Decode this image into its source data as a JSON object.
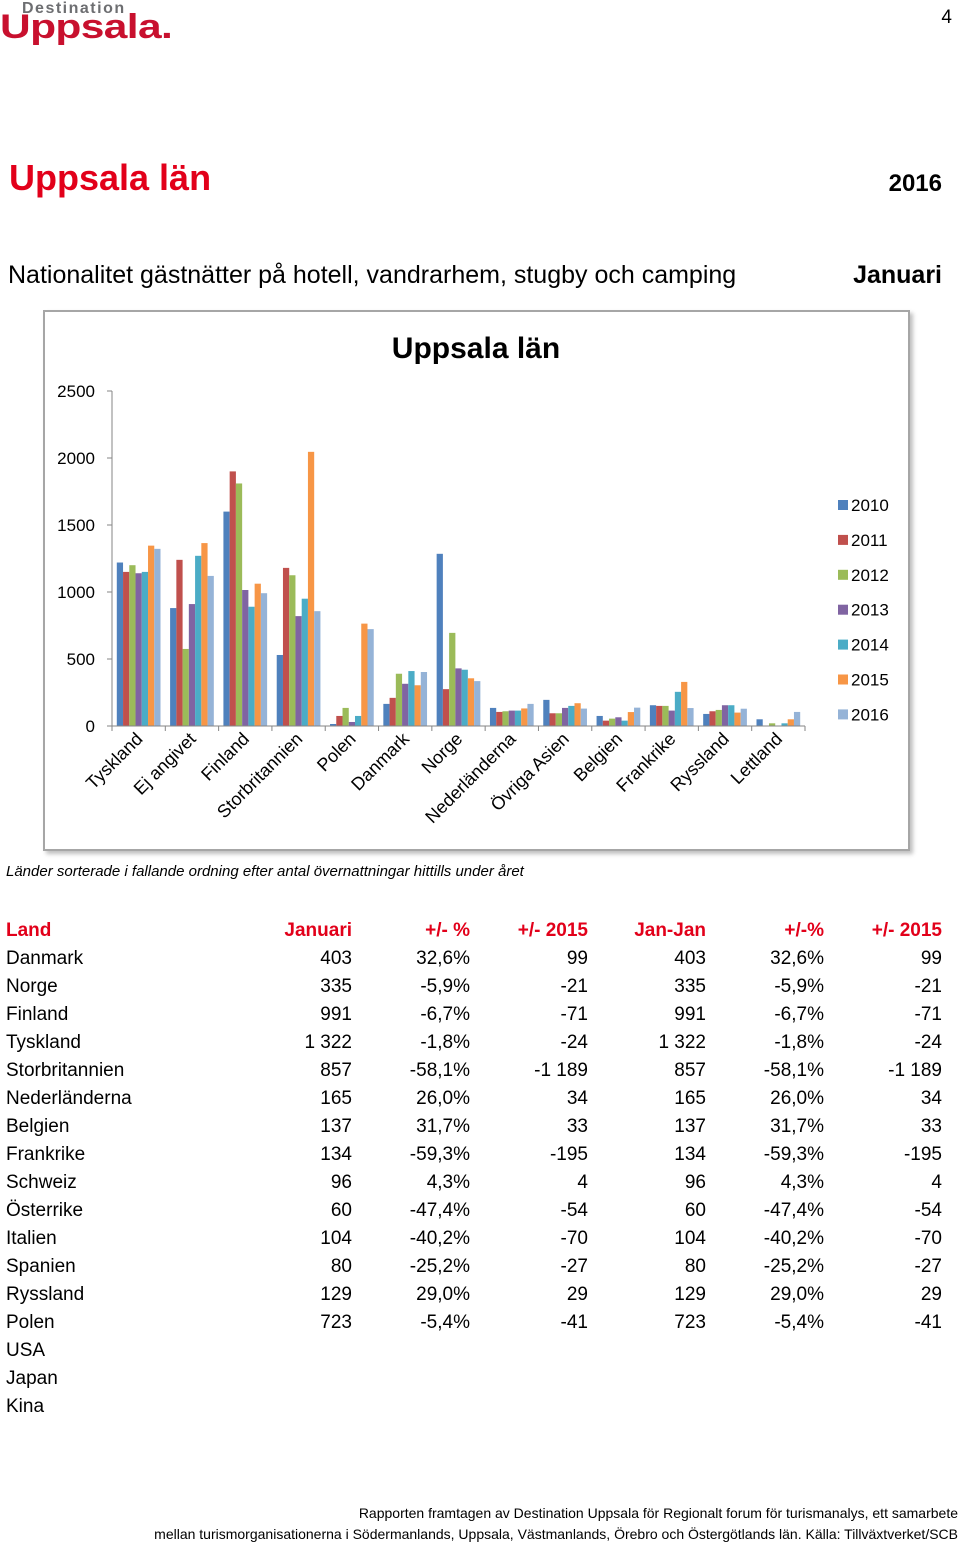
{
  "logo": {
    "tagline": "Destination",
    "name": "Uppsala."
  },
  "page_number": "4",
  "header": {
    "title": "Uppsala län",
    "year": "2016",
    "subtitle": "Nationalitet gästnätter på hotell, vandrarhem, stugby och camping",
    "month": "Januari"
  },
  "colors": {
    "accent_red": "#e2001a",
    "logo_red": "#c8102e",
    "frame_gray": "#a6a6a6"
  },
  "chart_data": {
    "type": "bar",
    "title": "Uppsala län",
    "categories": [
      "Tyskland",
      "Ej angivet",
      "Finland",
      "Storbritannien",
      "Polen",
      "Danmark",
      "Norge",
      "Nederländerna",
      "Övriga Asien",
      "Belgien",
      "Frankrike",
      "Ryssland",
      "Lettland"
    ],
    "series": [
      {
        "name": "2010",
        "color": "#4F81BD",
        "values": [
          1220,
          880,
          1600,
          530,
          15,
          165,
          1285,
          135,
          195,
          75,
          155,
          90,
          50
        ]
      },
      {
        "name": "2011",
        "color": "#C0504D",
        "values": [
          1150,
          1240,
          1900,
          1180,
          75,
          210,
          275,
          105,
          95,
          40,
          150,
          110,
          0
        ]
      },
      {
        "name": "2012",
        "color": "#9BBB59",
        "values": [
          1200,
          575,
          1810,
          1125,
          135,
          390,
          695,
          110,
          95,
          55,
          150,
          120,
          20
        ]
      },
      {
        "name": "2013",
        "color": "#8064A2",
        "values": [
          1140,
          910,
          1015,
          820,
          30,
          315,
          430,
          115,
          135,
          65,
          115,
          155,
          0
        ]
      },
      {
        "name": "2014",
        "color": "#4BACC6",
        "values": [
          1150,
          1270,
          890,
          950,
          75,
          410,
          420,
          115,
          150,
          40,
          255,
          155,
          20
        ]
      },
      {
        "name": "2015",
        "color": "#F79646",
        "values": [
          1346,
          1365,
          1062,
          2046,
          764,
          304,
          356,
          131,
          170,
          104,
          329,
          100,
          50
        ]
      },
      {
        "name": "2016",
        "color": "#95B3D7",
        "values": [
          1322,
          1120,
          991,
          857,
          723,
          403,
          335,
          165,
          130,
          137,
          134,
          129,
          105
        ]
      }
    ],
    "ylim": [
      0,
      2500
    ],
    "yticks": [
      0,
      500,
      1000,
      1500,
      2000,
      2500
    ],
    "legend": "right",
    "grid": false
  },
  "caption": "Länder sorterade i fallande ordning efter antal övernattningar hittills under året",
  "table": {
    "headers": [
      "Land",
      "Januari",
      "+/- %",
      "+/- 2015",
      "Jan-Jan",
      "+/-%",
      "+/- 2015"
    ],
    "rows": [
      [
        "Danmark",
        "403",
        "32,6%",
        "99",
        "403",
        "32,6%",
        "99"
      ],
      [
        "Norge",
        "335",
        "-5,9%",
        "-21",
        "335",
        "-5,9%",
        "-21"
      ],
      [
        "Finland",
        "991",
        "-6,7%",
        "-71",
        "991",
        "-6,7%",
        "-71"
      ],
      [
        "Tyskland",
        "1 322",
        "-1,8%",
        "-24",
        "1 322",
        "-1,8%",
        "-24"
      ],
      [
        "Storbritannien",
        "857",
        "-58,1%",
        "-1 189",
        "857",
        "-58,1%",
        "-1 189"
      ],
      [
        "Nederländerna",
        "165",
        "26,0%",
        "34",
        "165",
        "26,0%",
        "34"
      ],
      [
        "Belgien",
        "137",
        "31,7%",
        "33",
        "137",
        "31,7%",
        "33"
      ],
      [
        "Frankrike",
        "134",
        "-59,3%",
        "-195",
        "134",
        "-59,3%",
        "-195"
      ],
      [
        "Schweiz",
        "96",
        "4,3%",
        "4",
        "96",
        "4,3%",
        "4"
      ],
      [
        "Österrike",
        "60",
        "-47,4%",
        "-54",
        "60",
        "-47,4%",
        "-54"
      ],
      [
        "Italien",
        "104",
        "-40,2%",
        "-70",
        "104",
        "-40,2%",
        "-70"
      ],
      [
        "Spanien",
        "80",
        "-25,2%",
        "-27",
        "80",
        "-25,2%",
        "-27"
      ],
      [
        "Ryssland",
        "129",
        "29,0%",
        "29",
        "129",
        "29,0%",
        "29"
      ],
      [
        "Polen",
        "723",
        "-5,4%",
        "-41",
        "723",
        "-5,4%",
        "-41"
      ],
      [
        "USA",
        "",
        "",
        "",
        "",
        "",
        ""
      ],
      [
        "Japan",
        "",
        "",
        "",
        "",
        "",
        ""
      ],
      [
        "Kina",
        "",
        "",
        "",
        "",
        "",
        ""
      ]
    ]
  },
  "footer": {
    "line1": "Rapporten framtagen av Destination Uppsala för Regionalt forum för turismanalys, ett samarbete",
    "line2": "mellan turismorganisationerna i Södermanlands, Uppsala, Västmanlands, Örebro och Östergötlands län. Källa: Tillväxtverket/SCB"
  }
}
